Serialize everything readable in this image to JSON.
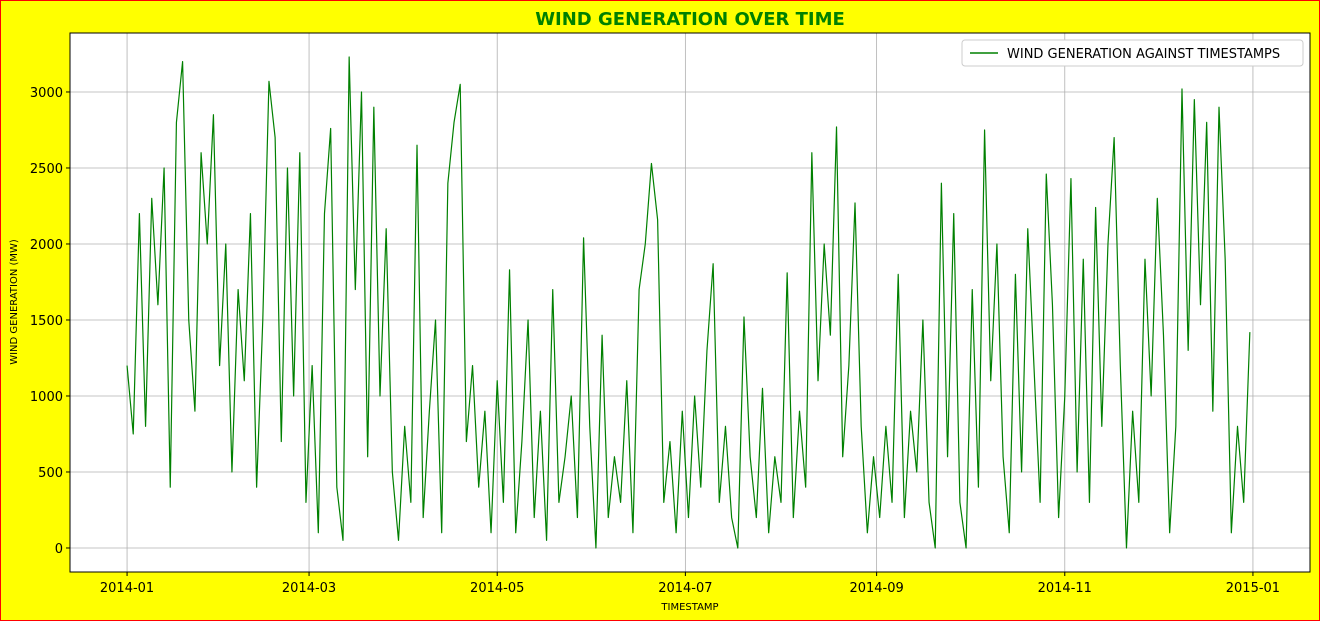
{
  "chart_data": {
    "type": "line",
    "title": "WIND GENERATION OVER TIME",
    "xlabel": "TIMESTAMP",
    "ylabel": "WIND GENERATION (MW)",
    "x": [
      0,
      2,
      4,
      6,
      8,
      10,
      12,
      14,
      16,
      18,
      20,
      22,
      24,
      26,
      28,
      30,
      32,
      34,
      36,
      38,
      40,
      42,
      44,
      46,
      48,
      50,
      52,
      54,
      56,
      58,
      60,
      62,
      64,
      66,
      68,
      70,
      72,
      74,
      76,
      78,
      80,
      82,
      84,
      86,
      88,
      90,
      92,
      94,
      96,
      98,
      100,
      102,
      104,
      106,
      108,
      110,
      112,
      114,
      116,
      118,
      120,
      122,
      124,
      126,
      128,
      130,
      132,
      134,
      136,
      138,
      140,
      142,
      144,
      146,
      148,
      150,
      152,
      154,
      156,
      158,
      160,
      162,
      164,
      166,
      168,
      170,
      172,
      174,
      176,
      178,
      180,
      182,
      184,
      186,
      188,
      190,
      192,
      194,
      196,
      198,
      200,
      202,
      204,
      206,
      208,
      210,
      212,
      214,
      216,
      218,
      220,
      222,
      224,
      226,
      228,
      230,
      232,
      234,
      236,
      238,
      240,
      242,
      244,
      246,
      248,
      250,
      252,
      254,
      256,
      258,
      260,
      262,
      264,
      266,
      268,
      270,
      272,
      274,
      276,
      278,
      280,
      282,
      284,
      286,
      288,
      290,
      292,
      294,
      296,
      298,
      300,
      302,
      304,
      306,
      308,
      310,
      312,
      314,
      316,
      318,
      320,
      322,
      324,
      326,
      328,
      330,
      332,
      334,
      336,
      338,
      340,
      342,
      344,
      346,
      348,
      350,
      352,
      354,
      356,
      358,
      360,
      362,
      364
    ],
    "series": [
      {
        "name": "WIND GENERATION AGAINST TIMESTAMPS",
        "color": "#008000",
        "values": [
          1200,
          750,
          2200,
          800,
          2300,
          1600,
          2500,
          400,
          2800,
          3200,
          1500,
          900,
          2600,
          2000,
          2850,
          1200,
          2000,
          500,
          1700,
          1100,
          2200,
          400,
          1500,
          3070,
          2700,
          700,
          2500,
          1000,
          2600,
          300,
          1200,
          100,
          2200,
          2760,
          400,
          50,
          3230,
          1700,
          3000,
          600,
          2900,
          1000,
          2100,
          500,
          50,
          800,
          300,
          2650,
          200,
          900,
          1500,
          100,
          2400,
          2800,
          3050,
          700,
          1200,
          400,
          900,
          100,
          1100,
          300,
          1830,
          100,
          700,
          1500,
          200,
          900,
          50,
          1700,
          300,
          600,
          1000,
          200,
          2040,
          800,
          0,
          1400,
          200,
          600,
          300,
          1100,
          100,
          1700,
          2000,
          2530,
          2160,
          300,
          700,
          100,
          900,
          200,
          1000,
          400,
          1300,
          1870,
          300,
          800,
          200,
          0,
          1520,
          600,
          200,
          1050,
          100,
          600,
          300,
          1810,
          200,
          900,
          400,
          2600,
          1100,
          2000,
          1400,
          2770,
          600,
          1200,
          2270,
          800,
          100,
          600,
          200,
          800,
          300,
          1800,
          200,
          900,
          500,
          1500,
          300,
          0,
          2400,
          600,
          2200,
          300,
          0,
          1700,
          400,
          2750,
          1100,
          2000,
          600,
          100,
          1800,
          500,
          2100,
          1200,
          300,
          2460,
          1600,
          200,
          1000,
          2430,
          500,
          1900,
          300,
          2240,
          800,
          2000,
          2700,
          1200,
          0,
          900,
          300,
          1900,
          1000,
          2300,
          1400,
          100,
          800,
          3020,
          1300,
          2950,
          1600,
          2800,
          900,
          2900,
          1900,
          100,
          800,
          300,
          1420
        ]
      }
    ],
    "xlim": [
      -18.5,
      383.5
    ],
    "xticks": [
      {
        "value": 0,
        "label": "2014-01"
      },
      {
        "value": 59,
        "label": "2014-03"
      },
      {
        "value": 120,
        "label": "2014-05"
      },
      {
        "value": 181,
        "label": "2014-07"
      },
      {
        "value": 243,
        "label": "2014-09"
      },
      {
        "value": 304,
        "label": "2014-11"
      },
      {
        "value": 365,
        "label": "2015-01"
      }
    ],
    "ylim": [
      -158,
      3388
    ],
    "yticks": [
      0,
      500,
      1000,
      1500,
      2000,
      2500,
      3000
    ],
    "grid": true,
    "legend": "upper right"
  }
}
